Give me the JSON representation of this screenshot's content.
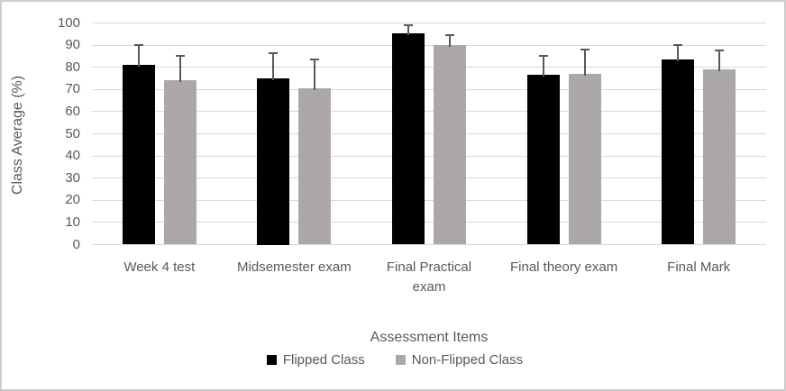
{
  "chart_data": {
    "type": "bar",
    "title": "",
    "xlabel": "Assessment Items",
    "ylabel": "Class Average (%)",
    "categories": [
      "Week 4 test",
      "Midsemester exam",
      "Final Practical\nexam",
      "Final theory exam",
      "Final Mark"
    ],
    "series": [
      {
        "name": "Flipped Class",
        "color": "#000000",
        "values": [
          81,
          75,
          95.5,
          76.5,
          83.5
        ],
        "error_plus": [
          9,
          11.5,
          3.5,
          8.5,
          6.5
        ]
      },
      {
        "name": "Non-Flipped Class",
        "color": "#ada8a8",
        "values": [
          74,
          70.5,
          90,
          77,
          79
        ],
        "error_plus": [
          11,
          13,
          4.5,
          11,
          8.5
        ]
      }
    ],
    "ylim": [
      0,
      100
    ],
    "ytick_step": 10,
    "yticks": [
      "0",
      "10",
      "20",
      "30",
      "40",
      "50",
      "60",
      "70",
      "80",
      "90",
      "100"
    ],
    "grid": "horizontal",
    "legend_position": "bottom",
    "colors": {
      "gridline": "#d9d9d9",
      "axis_text": "#595959",
      "error_bar": "#595959",
      "frame_border": "#cbcbcb"
    }
  }
}
